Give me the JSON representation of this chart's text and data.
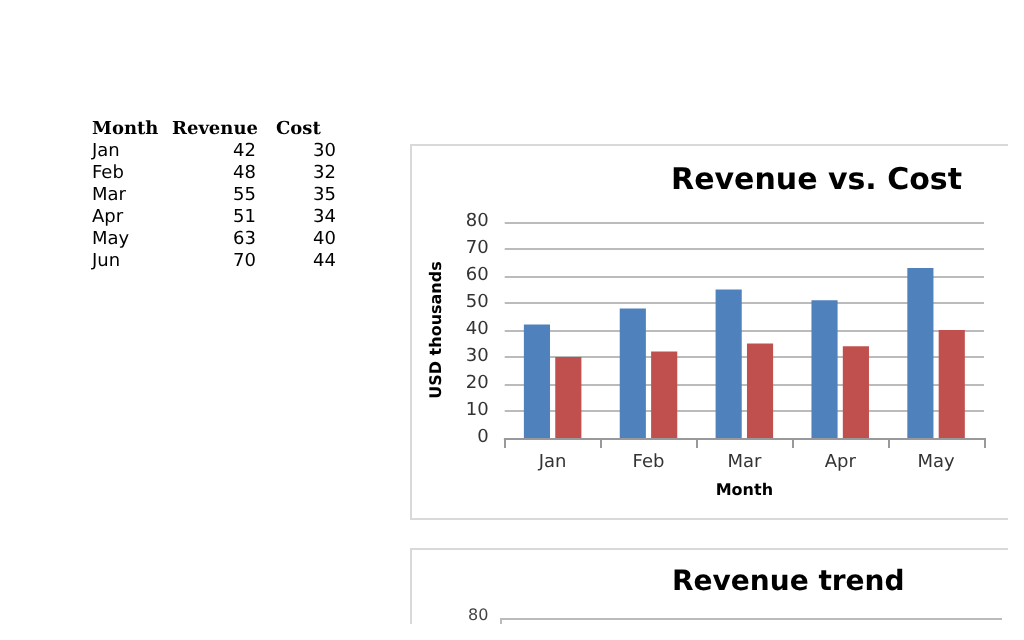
{
  "chart_data": [
    {
      "type": "other",
      "annotations": [
        "Month",
        "Revenue",
        "Cost",
        "Jan",
        "42",
        "30",
        "Feb",
        "48",
        "32",
        "Mar",
        "55",
        "35",
        "Apr",
        "51",
        "34",
        "May",
        "63",
        "40",
        "Jun",
        "70",
        "44"
      ]
    },
    {
      "type": "bar",
      "title": "Revenue vs. Cost",
      "xlabel": "Month",
      "ylabel": "USD thousands",
      "categories": [
        "Jan",
        "Feb",
        "Mar",
        "Apr",
        "May"
      ],
      "series": [
        {
          "color": "#4f81bd",
          "values": [
            42,
            48,
            55,
            51,
            63
          ]
        },
        {
          "color": "#c0504d",
          "values": [
            30,
            32,
            35,
            34,
            40
          ]
        }
      ],
      "ylim": [
        0,
        80
      ],
      "yticks": [
        0,
        10,
        20,
        30,
        40,
        50,
        60,
        70,
        80
      ],
      "grid": "y"
    },
    {
      "type": "other",
      "title": "Revenue trend",
      "annotations": [
        "80"
      ]
    }
  ]
}
